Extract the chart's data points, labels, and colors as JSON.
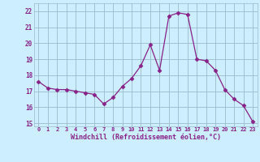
{
  "x": [
    0,
    1,
    2,
    3,
    4,
    5,
    6,
    7,
    8,
    9,
    10,
    11,
    12,
    13,
    14,
    15,
    16,
    17,
    18,
    19,
    20,
    21,
    22,
    23
  ],
  "y": [
    17.6,
    17.2,
    17.1,
    17.1,
    17.0,
    16.9,
    16.8,
    16.2,
    16.6,
    17.3,
    17.8,
    18.6,
    19.9,
    18.3,
    21.7,
    21.9,
    21.8,
    19.0,
    18.9,
    18.3,
    17.1,
    16.5,
    16.1,
    15.1
  ],
  "line_color": "#882288",
  "marker": "D",
  "marker_size": 2.5,
  "bg_color": "#cceeff",
  "grid_color": "#99bbcc",
  "xlabel": "Windchill (Refroidissement éolien,°C)",
  "xlabel_color": "#882288",
  "tick_color": "#882288",
  "ylim": [
    14.8,
    22.5
  ],
  "yticks": [
    15,
    16,
    17,
    18,
    19,
    20,
    21,
    22
  ],
  "xlim": [
    -0.5,
    23.5
  ],
  "xticks": [
    0,
    1,
    2,
    3,
    4,
    5,
    6,
    7,
    8,
    9,
    10,
    11,
    12,
    13,
    14,
    15,
    16,
    17,
    18,
    19,
    20,
    21,
    22,
    23
  ]
}
